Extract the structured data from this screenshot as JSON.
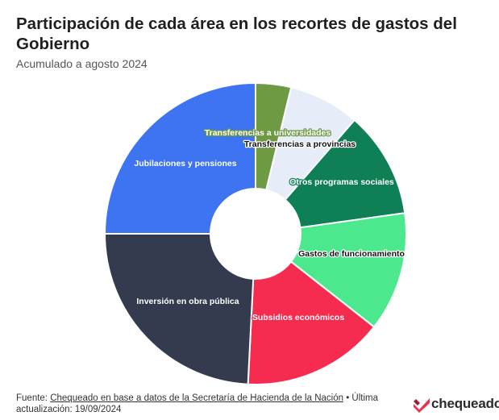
{
  "header": {
    "title": "Participación de cada área en los recortes de gastos del Gobierno",
    "subtitle": "Acumulado a agosto 2024"
  },
  "chart_data": {
    "type": "pie",
    "title": "Participación de cada área en los recortes de gastos del Gobierno",
    "subtitle": "Acumulado a agosto 2024",
    "slices": [
      {
        "label": "Transferencias a universidades",
        "value": 3.8,
        "color": "#6e9a44"
      },
      {
        "label": "Transferencias a provincias",
        "value": 7.6,
        "color": "#e6ecf8"
      },
      {
        "label": "Otros programas sociales",
        "value": 11.4,
        "color": "#0f8055"
      },
      {
        "label": "Gastos de funcionamiento",
        "value": 12.8,
        "color": "#4be88e"
      },
      {
        "label": "Subsidios económicos",
        "value": 15.2,
        "color": "#f52b4f"
      },
      {
        "label": "Inversión en obra pública",
        "value": 24.2,
        "color": "#343b4e"
      },
      {
        "label": "Jubilaciones y pensiones",
        "value": 25.0,
        "color": "#3e73f2"
      }
    ],
    "start_angle_deg": 0,
    "donut": true,
    "legend": "none"
  },
  "footer": {
    "source_prefix": "Fuente: ",
    "source_link": "Chequeado en base a datos de la Secretaría de Hacienda de la Nación",
    "source_suffix": " • Última actualización: 19/09/2024"
  },
  "logo": {
    "text": "chequeado",
    "icon": "chequeado-check-icon",
    "color": "#e8354d"
  }
}
